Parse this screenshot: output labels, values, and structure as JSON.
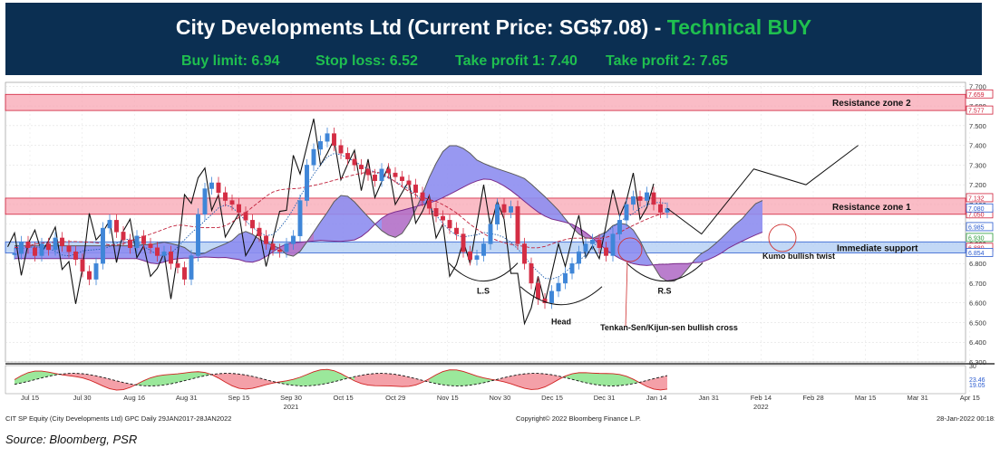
{
  "header": {
    "title_main": "City Developments Ltd (Current Price: SG$7.08) - ",
    "title_signal": "Technical BUY",
    "buy_limit": "Buy limit: 6.94",
    "stop_loss": "Stop loss: 6.52",
    "take_profit_1": "Take profit 1: 7.40",
    "take_profit_2": "Take profit 2: 7.65"
  },
  "colors": {
    "header_bg": "#0b2f52",
    "signal_green": "#1fbf4f",
    "cloud_bullish": "#8d8df0",
    "cloud_bearish": "#b270c8",
    "resistance_zone": "#f8a0ae",
    "support_zone": "#a8c8f2",
    "candle_up": "#3f86d8",
    "candle_down": "#d42d44"
  },
  "chart_data": {
    "type": "candlestick",
    "instrument": "CIT SP Equity (City Developments Ltd) GPC  Daily 29JAN2017-28JAN2022",
    "copyright": "Copyright© 2022 Bloomberg Finance L.P.",
    "timestamp": "28-Jan-2022 00:18:",
    "x_labels": [
      "Jul 15",
      "Jul 30",
      "Aug 16",
      "Aug 31",
      "Sep 15",
      "Sep 30",
      "Oct 15",
      "Oct 29",
      "Nov 15",
      "Nov 30",
      "Dec 15",
      "Dec 31",
      "Jan 14",
      "Jan 31",
      "Feb 14",
      "Feb 28",
      "Mar 15",
      "Mar 31",
      "Apr 15"
    ],
    "x_years": [
      "2021",
      "2022"
    ],
    "y_ticks": [
      "7.700",
      "7.600",
      "7.500",
      "7.400",
      "7.300",
      "7.200",
      "7.100",
      "7.000",
      "6.900",
      "6.800",
      "6.700",
      "6.600",
      "6.500",
      "6.400",
      "6.300"
    ],
    "ylim": [
      6.3,
      7.72
    ],
    "price_labels": [
      "7.659",
      "7.577",
      "7.132",
      "7.050",
      "7.080",
      "6.985",
      "6.930",
      "6.880",
      "6.854"
    ],
    "zones": [
      {
        "label": "Resistance zone 2",
        "low": 7.577,
        "high": 7.659
      },
      {
        "label": "Resistance zone 1",
        "low": 7.05,
        "high": 7.132
      },
      {
        "label": "Immediate support",
        "low": 6.854,
        "high": 6.91
      }
    ],
    "annotations": [
      "Kumo bullish twist",
      "L.S",
      "Head",
      "R.S",
      "Tenkan-Sen/Kijun-sen bullish cross"
    ],
    "closes": [
      6.85,
      6.91,
      6.88,
      6.84,
      6.9,
      6.87,
      6.93,
      6.89,
      6.86,
      6.82,
      6.76,
      6.72,
      6.8,
      6.98,
      7.02,
      6.96,
      6.92,
      6.88,
      6.94,
      6.9,
      6.88,
      6.84,
      6.86,
      6.8,
      6.78,
      6.72,
      6.84,
      7.05,
      7.18,
      7.21,
      7.16,
      7.12,
      7.1,
      7.06,
      7.02,
      6.98,
      6.94,
      6.9,
      6.87,
      6.86,
      6.9,
      6.94,
      7.12,
      7.3,
      7.38,
      7.42,
      7.46,
      7.4,
      7.36,
      7.33,
      7.3,
      7.28,
      7.25,
      7.22,
      7.28,
      7.26,
      7.24,
      7.22,
      7.2,
      7.16,
      7.12,
      7.08,
      7.04,
      7.02,
      6.98,
      6.95,
      6.86,
      6.82,
      6.84,
      6.9,
      7.0,
      7.1,
      7.06,
      7.09,
      6.9,
      6.8,
      6.7,
      6.62,
      6.6,
      6.66,
      6.7,
      6.75,
      6.8,
      6.86,
      6.9,
      6.92,
      6.88,
      6.84,
      6.95,
      7.02,
      7.1,
      7.14,
      7.12,
      7.16,
      7.1,
      7.06,
      7.08
    ],
    "projection": [
      {
        "x": "Jan 31",
        "y": 6.95
      },
      {
        "x": "Feb 14",
        "y": 7.28
      },
      {
        "x": "Feb 28",
        "y": 7.2
      },
      {
        "x": "Mar 15",
        "y": 7.4
      }
    ],
    "oscillator_ticks": [
      "30",
      "23.46",
      "19.05"
    ]
  },
  "source_text": "Source: Bloomberg, PSR"
}
